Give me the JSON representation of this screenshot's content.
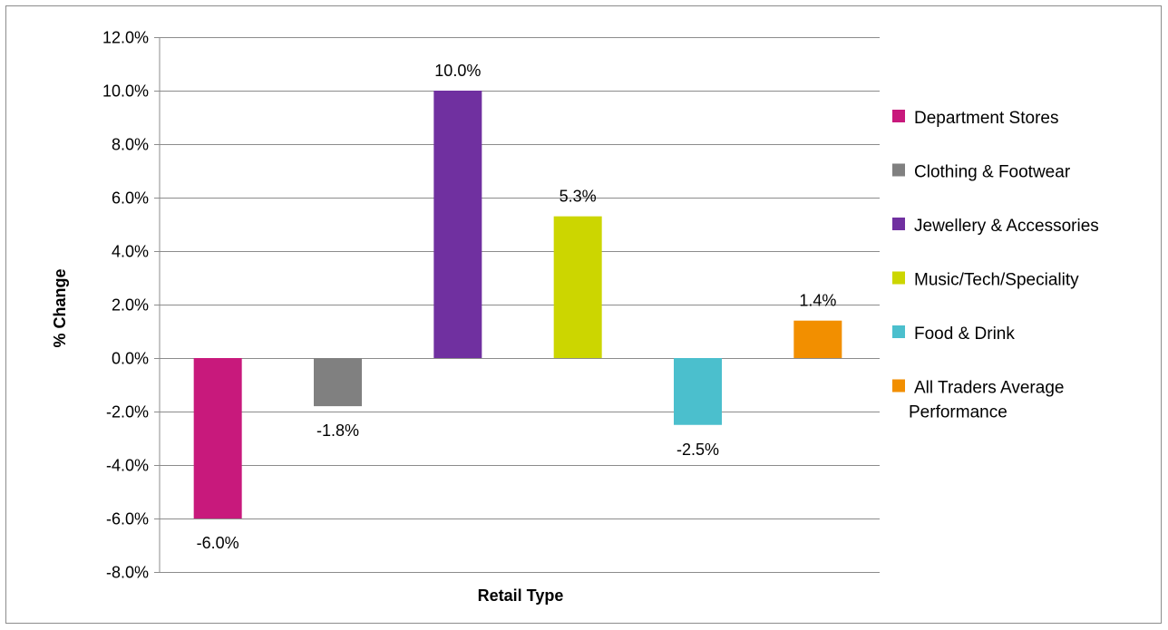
{
  "chart_data": {
    "type": "bar",
    "xlabel": "Retail Type",
    "ylabel": "% Change",
    "ylim": [
      -8,
      12
    ],
    "ytick_step": 2,
    "ytick_labels": [
      "-8.0%",
      "-6.0%",
      "-4.0%",
      "-2.0%",
      "0.0%",
      "2.0%",
      "4.0%",
      "6.0%",
      "8.0%",
      "10.0%",
      "12.0%"
    ],
    "grid": true,
    "legend_position": "right",
    "series": [
      {
        "name": "Department Stores",
        "value": -6.0,
        "label": "-6.0%",
        "color": "#C8197C"
      },
      {
        "name": "Clothing & Footwear",
        "value": -1.8,
        "label": "-1.8%",
        "color": "#808080"
      },
      {
        "name": "Jewellery & Accessories",
        "value": 10.0,
        "label": "10.0%",
        "color": "#7030A0"
      },
      {
        "name": "Music/Tech/Speciality",
        "value": 5.3,
        "label": "5.3%",
        "color": "#CCD600"
      },
      {
        "name": "Food & Drink",
        "value": -2.5,
        "label": "-2.5%",
        "color": "#4BBFCD"
      },
      {
        "name": "All Traders Average Performance",
        "value": 1.4,
        "label": "1.4%",
        "color": "#F28F00"
      }
    ]
  }
}
